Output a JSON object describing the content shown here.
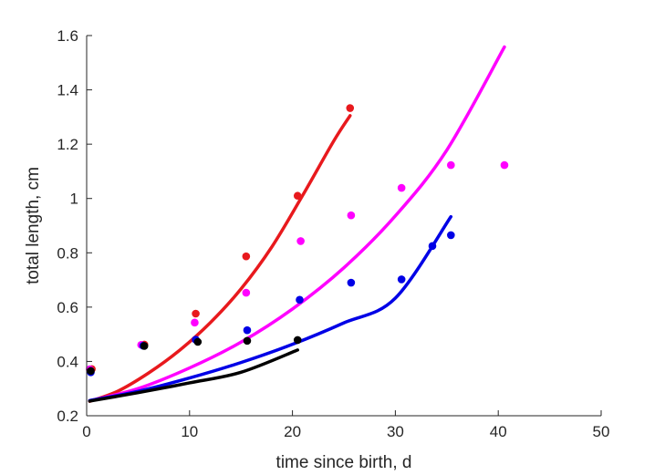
{
  "chart_data": {
    "type": "scatter",
    "title": "",
    "xlabel": "time since birth, d",
    "ylabel": "total length, cm",
    "xlim": [
      0,
      50
    ],
    "ylim": [
      0.2,
      1.6
    ],
    "xticks": [
      0,
      10,
      20,
      30,
      40,
      50
    ],
    "xtick_labels": [
      "0",
      "10",
      "20",
      "30",
      "40",
      "50"
    ],
    "yticks": [
      0.2,
      0.4,
      0.6,
      0.8,
      1.0,
      1.2,
      1.4,
      1.6
    ],
    "ytick_labels": [
      "0.2",
      "0.4",
      "0.6",
      "0.8",
      "1",
      "1.2",
      "1.4",
      "1.6"
    ],
    "grid": false,
    "series": [
      {
        "color": "#e8191d",
        "points": [
          [
            0.5,
            0.372
          ],
          [
            5.6,
            0.462
          ],
          [
            10.6,
            0.576
          ],
          [
            15.5,
            0.787
          ],
          [
            20.5,
            1.01
          ],
          [
            25.6,
            1.333
          ]
        ],
        "curve": [
          [
            0.3,
            0.253
          ],
          [
            3,
            0.29
          ],
          [
            6,
            0.357
          ],
          [
            9,
            0.44
          ],
          [
            12,
            0.542
          ],
          [
            15,
            0.667
          ],
          [
            18,
            0.822
          ],
          [
            21,
            1.012
          ],
          [
            24,
            1.211
          ],
          [
            25.6,
            1.305
          ]
        ]
      },
      {
        "color": "#ff00ff",
        "points": [
          [
            0.3,
            0.371
          ],
          [
            5.3,
            0.461
          ],
          [
            10.5,
            0.543
          ],
          [
            15.5,
            0.653
          ],
          [
            20.8,
            0.843
          ],
          [
            25.7,
            0.938
          ],
          [
            30.6,
            1.039
          ],
          [
            35.4,
            1.123
          ],
          [
            40.6,
            1.123
          ]
        ],
        "curve": [
          [
            0.3,
            0.255
          ],
          [
            5,
            0.3
          ],
          [
            10,
            0.376
          ],
          [
            15,
            0.471
          ],
          [
            20,
            0.593
          ],
          [
            25,
            0.745
          ],
          [
            30,
            0.936
          ],
          [
            35,
            1.178
          ],
          [
            40.6,
            1.558
          ]
        ]
      },
      {
        "color": "#0000e6",
        "points": [
          [
            0.4,
            0.36
          ],
          [
            5.5,
            0.458
          ],
          [
            10.6,
            0.48
          ],
          [
            15.6,
            0.515
          ],
          [
            20.7,
            0.627
          ],
          [
            25.7,
            0.69
          ],
          [
            30.6,
            0.702
          ],
          [
            33.6,
            0.825
          ],
          [
            35.4,
            0.865
          ]
        ],
        "curve": [
          [
            0.3,
            0.256
          ],
          [
            5,
            0.29
          ],
          [
            10,
            0.339
          ],
          [
            15,
            0.396
          ],
          [
            20,
            0.463
          ],
          [
            25,
            0.542
          ],
          [
            30,
            0.633
          ],
          [
            35.4,
            0.933
          ]
        ]
      },
      {
        "color": "#000000",
        "points": [
          [
            0.4,
            0.365
          ],
          [
            5.6,
            0.457
          ],
          [
            10.8,
            0.472
          ],
          [
            15.6,
            0.476
          ],
          [
            20.5,
            0.479
          ]
        ],
        "curve": [
          [
            0.3,
            0.254
          ],
          [
            5,
            0.285
          ],
          [
            10,
            0.321
          ],
          [
            15,
            0.36
          ],
          [
            20.5,
            0.442
          ]
        ]
      }
    ]
  }
}
